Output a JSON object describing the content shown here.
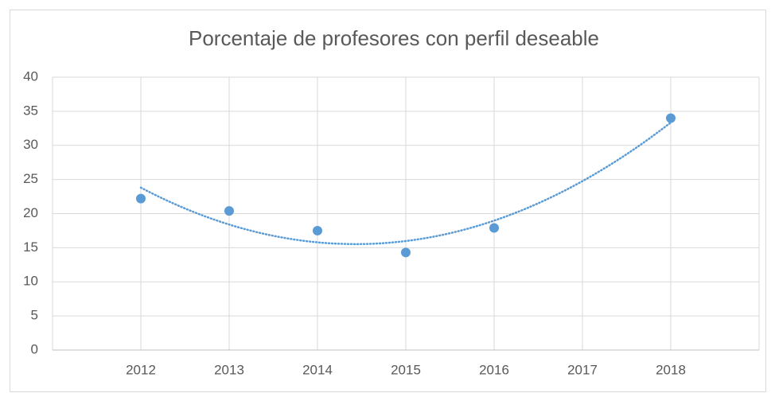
{
  "chart_data": {
    "type": "scatter",
    "title": "Porcentaje de profesores con perfil deseable",
    "x": [
      2012,
      2013,
      2014,
      2015,
      2016,
      2018
    ],
    "values": [
      22.2,
      20.4,
      17.5,
      14.3,
      17.9,
      34.0
    ],
    "color": "#5b9bd5",
    "xlim": [
      2011,
      2019
    ],
    "xticks": [
      2012,
      2013,
      2014,
      2015,
      2016,
      2017,
      2018
    ],
    "ylim": [
      0,
      40
    ],
    "yticks": [
      0,
      5,
      10,
      15,
      20,
      25,
      30,
      35,
      40
    ],
    "grid": true,
    "trendline": {
      "type": "polynomial",
      "order": 2,
      "color": "#5b9bd5"
    }
  }
}
